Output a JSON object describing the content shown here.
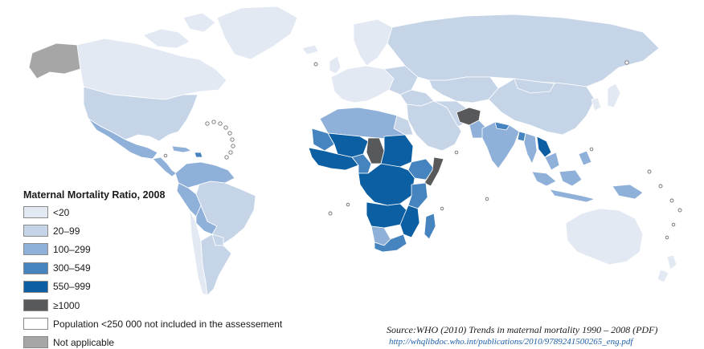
{
  "legend": {
    "title": "Maternal Mortality Ratio, 2008",
    "items": [
      {
        "label": "<20",
        "color": "#e3e9f3"
      },
      {
        "label": "20–99",
        "color": "#c6d4e8"
      },
      {
        "label": "100–299",
        "color": "#8fb0d8"
      },
      {
        "label": "300–549",
        "color": "#4684c0"
      },
      {
        "label": "550–999",
        "color": "#0d5fa4"
      },
      {
        "label": "≥1000",
        "color": "#58595b"
      },
      {
        "label": "Population <250 000 not included in the assessement",
        "color": "#ffffff"
      },
      {
        "label": "Not applicable",
        "color": "#a6a6a6"
      }
    ]
  },
  "source": {
    "text": "Source:WHO (2010) Trends in maternal mortality 1990 – 2008 (PDF)",
    "url": "http://whqlibdoc.who.int/publications/2010/9789241500265_eng.pdf"
  }
}
